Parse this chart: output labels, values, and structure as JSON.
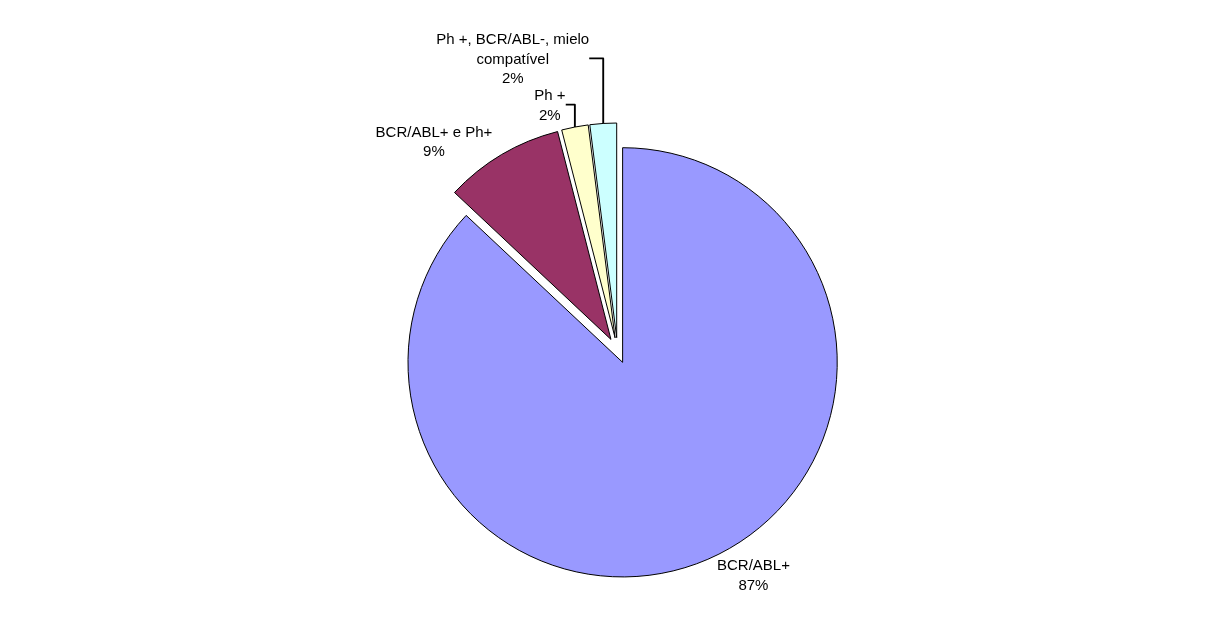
{
  "chart_data": {
    "type": "pie",
    "categories": [
      "BCR/ABL+",
      "BCR/ABL+ e Ph+",
      "Ph +",
      "Ph +, BCR/ABL-, mielo compatível"
    ],
    "values": [
      87,
      9,
      2,
      2
    ],
    "value_labels": [
      "87%",
      "9%",
      "2%",
      "2%"
    ],
    "colors": [
      "#9999ff",
      "#993366",
      "#ffffcc",
      "#ccffff"
    ],
    "legend": false
  }
}
